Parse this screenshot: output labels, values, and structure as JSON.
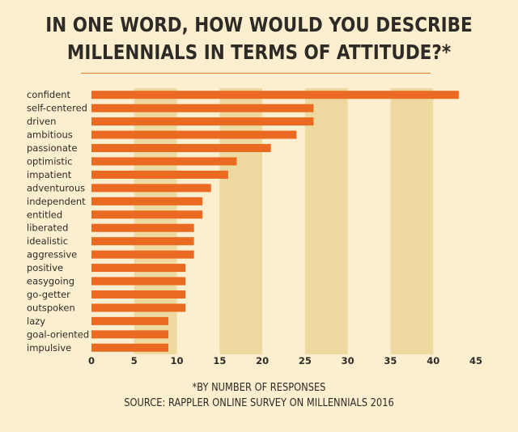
{
  "title": {
    "line1": "IN ONE WORD, HOW WOULD YOU DESCRIBE",
    "line2": "MILLENNIALS IN TERMS OF ATTITUDE?*"
  },
  "footer": {
    "note": "*BY NUMBER OF RESPONSES",
    "source": "SOURCE: RAPPLER ONLINE SURVEY ON MILLENNIALS 2016"
  },
  "colors": {
    "bar": "#ea6a21",
    "band": "#eed9a0",
    "background": "#fcefcf",
    "text": "#2e2b26"
  },
  "chart_data": {
    "type": "bar",
    "orientation": "horizontal",
    "categories": [
      "confident",
      "self-centered",
      "driven",
      "ambitious",
      "passionate",
      "optimistic",
      "impatient",
      "adventurous",
      "independent",
      "entitled",
      "liberated",
      "idealistic",
      "aggressive",
      "positive",
      "easygoing",
      "go-getter",
      "outspoken",
      "lazy",
      "goal-oriented",
      "impulsive"
    ],
    "values": [
      43,
      26,
      26,
      24,
      21,
      17,
      16,
      14,
      13,
      13,
      12,
      12,
      12,
      11,
      11,
      11,
      11,
      9,
      9,
      9
    ],
    "xlim": [
      0,
      45
    ],
    "xticks": [
      0,
      5,
      10,
      15,
      20,
      25,
      30,
      35,
      40,
      45
    ],
    "grid": "alternating vertical bands"
  }
}
